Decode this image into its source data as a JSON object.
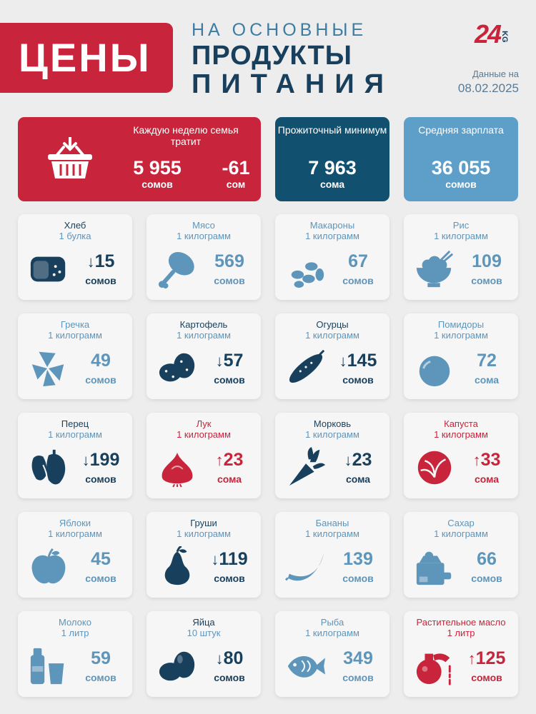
{
  "header": {
    "title": "ЦЕНЫ",
    "subtitle_line1": "НА ОСНОВНЫЕ",
    "subtitle_line2": "ПРОДУКТЫ",
    "subtitle_line3": "ПИТАНИЯ",
    "logo_number": "24",
    "logo_suffix": "KG",
    "date_label": "Данные на",
    "date_value": "08.02.2025"
  },
  "colors": {
    "red": "#c8243b",
    "navy": "#183f5c",
    "blue": "#12506f",
    "light": "#5e9fca"
  },
  "weekly": {
    "label": "Каждую неделю семья тратит",
    "amount": "5 955",
    "amount_unit": "сомов",
    "change": "-61",
    "change_unit": "сом",
    "icon": "basket-icon"
  },
  "minimum": {
    "label": "Прожиточный минимум",
    "amount": "7 963",
    "unit": "сома"
  },
  "salary": {
    "label": "Средняя зарплата",
    "amount": "36 055",
    "unit": "сомов"
  },
  "products": [
    {
      "name": "Хлеб",
      "qty": "1 булка",
      "price": "15",
      "arrow": "↓",
      "unit": "сомов",
      "icon": "bread-icon"
    },
    {
      "name": "Мясо",
      "qty": "1 килограмм",
      "price": "569",
      "arrow": "",
      "unit": "сомов",
      "icon": "meat-icon"
    },
    {
      "name": "Макароны",
      "qty": "1 килограмм",
      "price": "67",
      "arrow": "",
      "unit": "сомов",
      "icon": "pasta-icon"
    },
    {
      "name": "Рис",
      "qty": "1 килограмм",
      "price": "109",
      "arrow": "",
      "unit": "сомов",
      "icon": "rice-icon"
    },
    {
      "name": "Гречка",
      "qty": "1 килограмм",
      "price": "49",
      "arrow": "",
      "unit": "сомов",
      "icon": "buckwheat-icon"
    },
    {
      "name": "Картофель",
      "qty": "1 килограмм",
      "price": "57",
      "arrow": "↓",
      "unit": "сомов",
      "icon": "potato-icon"
    },
    {
      "name": "Огурцы",
      "qty": "1 килограмм",
      "price": "145",
      "arrow": "↓",
      "unit": "сомов",
      "icon": "cucumber-icon"
    },
    {
      "name": "Помидоры",
      "qty": "1 килограмм",
      "price": "72",
      "arrow": "",
      "unit": "сома",
      "icon": "tomato-icon"
    },
    {
      "name": "Перец",
      "qty": "1 килограмм",
      "price": "199",
      "arrow": "↓",
      "unit": "сомов",
      "icon": "pepper-icon"
    },
    {
      "name": "Лук",
      "qty": "1 килограмм",
      "price": "23",
      "arrow": "↑",
      "unit": "сома",
      "icon": "onion-icon"
    },
    {
      "name": "Морковь",
      "qty": "1 килограмм",
      "price": "23",
      "arrow": "↓",
      "unit": "сома",
      "icon": "carrot-icon"
    },
    {
      "name": "Капуста",
      "qty": "1 килограмм",
      "price": "33",
      "arrow": "↑",
      "unit": "сома",
      "icon": "cabbage-icon"
    },
    {
      "name": "Яблоки",
      "qty": "1 килограмм",
      "price": "45",
      "arrow": "",
      "unit": "сомов",
      "icon": "apple-icon"
    },
    {
      "name": "Груши",
      "qty": "1 килограмм",
      "price": "119",
      "arrow": "↓",
      "unit": "сомов",
      "icon": "pear-icon"
    },
    {
      "name": "Бананы",
      "qty": "1 килограмм",
      "price": "139",
      "arrow": "",
      "unit": "сомов",
      "icon": "banana-icon"
    },
    {
      "name": "Сахар",
      "qty": "1 килограмм",
      "price": "66",
      "arrow": "",
      "unit": "сомов",
      "icon": "sugar-icon"
    },
    {
      "name": "Молоко",
      "qty": "1 литр",
      "price": "59",
      "arrow": "",
      "unit": "сомов",
      "icon": "milk-icon"
    },
    {
      "name": "Яйца",
      "qty": "10 штук",
      "price": "80",
      "arrow": "↓",
      "unit": "сомов",
      "icon": "eggs-icon"
    },
    {
      "name": "Рыба",
      "qty": "1 килограмм",
      "price": "349",
      "arrow": "",
      "unit": "сомов",
      "icon": "fish-icon"
    },
    {
      "name": "Растительное масло",
      "qty": "1 литр",
      "price": "125",
      "arrow": "↑",
      "unit": "сомов",
      "icon": "oil-icon"
    }
  ]
}
